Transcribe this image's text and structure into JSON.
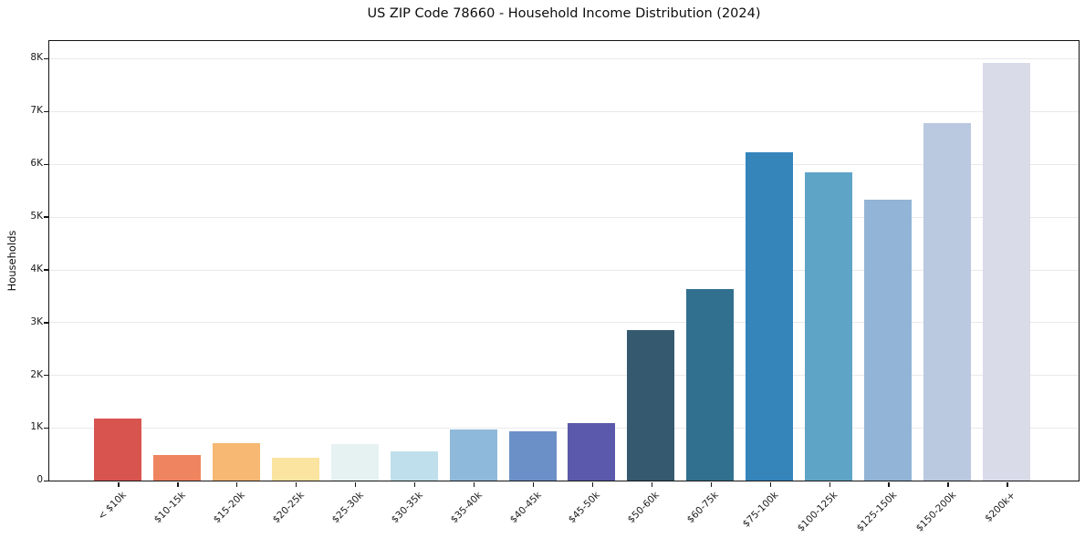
{
  "chart_data": {
    "type": "bar",
    "title": "US ZIP Code 78660 - Household Income Distribution (2024)",
    "xlabel": "",
    "ylabel": "Households",
    "categories": [
      "< $10k",
      "$10-15k",
      "$15-20k",
      "$20-25k",
      "$25-30k",
      "$30-35k",
      "$35-40k",
      "$40-45k",
      "$45-50k",
      "$50-60k",
      "$60-75k",
      "$75-100k",
      "$100-125k",
      "$125-150k",
      "$150-200k",
      "$200k+"
    ],
    "values": [
      1175,
      490,
      710,
      425,
      700,
      555,
      970,
      935,
      1085,
      2845,
      3630,
      6230,
      5845,
      5320,
      6770,
      7915
    ],
    "bar_colors": [
      "#d8544f",
      "#ef8460",
      "#f6b872",
      "#fbe3a0",
      "#e6f1f2",
      "#bfdfec",
      "#8fb9da",
      "#6b90c7",
      "#5a59ab",
      "#35596e",
      "#32708f",
      "#3585bb",
      "#5ea4c6",
      "#92b4d7",
      "#bac8e0",
      "#d9dbe9"
    ],
    "ylim": [
      0,
      8330
    ],
    "ytick_labels": [
      "0",
      "1K",
      "2K",
      "3K",
      "4K",
      "5K",
      "6K",
      "7K",
      "8K"
    ],
    "ytick_values": [
      0,
      1000,
      2000,
      3000,
      4000,
      5000,
      6000,
      7000,
      8000
    ],
    "grid": "horizontal",
    "legend": "none",
    "background_color": "#ffffff",
    "spine_color": "#141414",
    "gridline_color": "#e9e9ec"
  }
}
